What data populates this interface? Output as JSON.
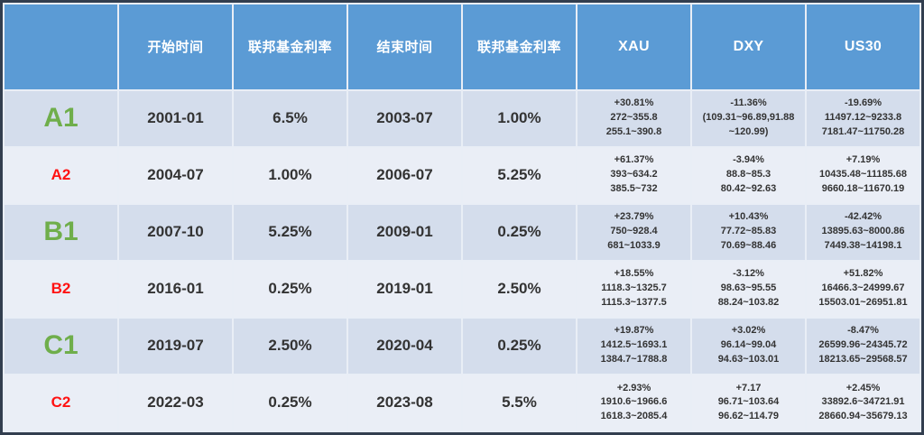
{
  "palette": {
    "header_blue": "#5B9BD5",
    "row_band_dark": "#D4DDEC",
    "row_band_light": "#EAEEF6",
    "outer_border": "#323E4F",
    "gridline": "#E9EEF6",
    "label_green": "#6FAE4B",
    "label_red": "#FF1212",
    "header_text": "#FFFFFF",
    "body_text": "#333333"
  },
  "chart_data": {
    "type": "table",
    "columns": [
      "",
      "开始时间",
      "联邦基金利率",
      "结束时间",
      "联邦基金利率",
      "XAU",
      "DXY",
      "US30"
    ],
    "rows": [
      {
        "label": "A1",
        "start_time": "2001-01",
        "fed_rate_start": "6.5%",
        "end_time": "2003-07",
        "fed_rate_end": "1.00%",
        "xau": [
          "+30.81%",
          "272~355.8",
          "255.1~390.8"
        ],
        "dxy": [
          "-11.36%",
          "(109.31~96.89,91.88",
          "~120.99)"
        ],
        "us30": [
          "-19.69%",
          "11497.12~9233.8",
          "7181.47~11750.28"
        ]
      },
      {
        "label": "A2",
        "start_time": "2004-07",
        "fed_rate_start": "1.00%",
        "end_time": "2006-07",
        "fed_rate_end": "5.25%",
        "xau": [
          "+61.37%",
          "393~634.2",
          "385.5~732"
        ],
        "dxy": [
          "-3.94%",
          "88.8~85.3",
          "80.42~92.63"
        ],
        "us30": [
          "+7.19%",
          "10435.48~11185.68",
          "9660.18~11670.19"
        ]
      },
      {
        "label": "B1",
        "start_time": "2007-10",
        "fed_rate_start": "5.25%",
        "end_time": "2009-01",
        "fed_rate_end": "0.25%",
        "xau": [
          "+23.79%",
          "750~928.4",
          "681~1033.9"
        ],
        "dxy": [
          "+10.43%",
          "77.72~85.83",
          "70.69~88.46"
        ],
        "us30": [
          "-42.42%",
          "13895.63~8000.86",
          "7449.38~14198.1"
        ]
      },
      {
        "label": "B2",
        "start_time": "2016-01",
        "fed_rate_start": "0.25%",
        "end_time": "2019-01",
        "fed_rate_end": "2.50%",
        "xau": [
          "+18.55%",
          "1118.3~1325.7",
          "1115.3~1377.5"
        ],
        "dxy": [
          "-3.12%",
          "98.63~95.55",
          "88.24~103.82"
        ],
        "us30": [
          "+51.82%",
          "16466.3~24999.67",
          "15503.01~26951.81"
        ]
      },
      {
        "label": "C1",
        "start_time": "2019-07",
        "fed_rate_start": "2.50%",
        "end_time": "2020-04",
        "fed_rate_end": "0.25%",
        "xau": [
          "+19.87%",
          "1412.5~1693.1",
          "1384.7~1788.8"
        ],
        "dxy": [
          "+3.02%",
          "96.14~99.04",
          "94.63~103.01"
        ],
        "us30": [
          "-8.47%",
          "26599.96~24345.72",
          "18213.65~29568.57"
        ]
      },
      {
        "label": "C2",
        "start_time": "2022-03",
        "fed_rate_start": "0.25%",
        "end_time": "2023-08",
        "fed_rate_end": "5.5%",
        "xau": [
          "+2.93%",
          "1910.6~1966.6",
          "1618.3~2085.4"
        ],
        "dxy": [
          "+7.17",
          "96.71~103.64",
          "96.62~114.79"
        ],
        "us30": [
          "+2.45%",
          "33892.6~34721.91",
          "28660.94~35679.13"
        ]
      }
    ]
  }
}
